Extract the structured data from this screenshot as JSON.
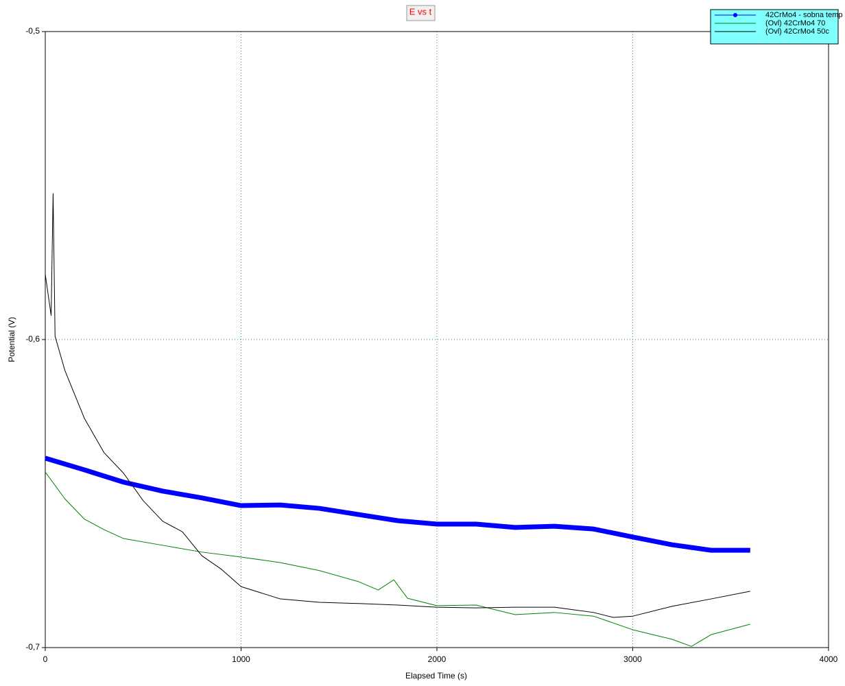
{
  "chart_data": {
    "type": "line",
    "title": "E vs t",
    "xlabel": "Elapsed Time (s)",
    "ylabel": "Potential (V)",
    "xlim": [
      0,
      4000
    ],
    "ylim": [
      -0.7,
      -0.5
    ],
    "xticks": [
      0,
      1000,
      2000,
      3000,
      4000
    ],
    "yticks": [
      {
        "value": -0.7,
        "label": "-0,7"
      },
      {
        "value": -0.6,
        "label": "-0,6"
      },
      {
        "value": -0.5,
        "label": "-0,5"
      }
    ],
    "grid": true,
    "legend": "upper right",
    "series": [
      {
        "name": "42CrMo4 - sobna temp",
        "color": "#0000ff",
        "x": [
          0,
          200,
          400,
          600,
          800,
          1000,
          1200,
          1400,
          1600,
          1800,
          2000,
          2200,
          2400,
          2600,
          2800,
          3000,
          3200,
          3400,
          3600
        ],
        "values": [
          -0.6385,
          -0.6423,
          -0.6463,
          -0.6492,
          -0.6514,
          -0.6539,
          -0.6537,
          -0.6548,
          -0.6568,
          -0.6588,
          -0.6599,
          -0.6599,
          -0.661,
          -0.6606,
          -0.6615,
          -0.6641,
          -0.6666,
          -0.6684,
          -0.6684
        ]
      },
      {
        "name": "(Ovl) 42CrMo4 70",
        "color": "#008000",
        "x": [
          0,
          100,
          200,
          300,
          400,
          600,
          800,
          1000,
          1200,
          1400,
          1600,
          1700,
          1780,
          1850,
          2000,
          2200,
          2400,
          2600,
          2800,
          3000,
          3200,
          3300,
          3400,
          3600
        ],
        "values": [
          -0.643,
          -0.6517,
          -0.6583,
          -0.6617,
          -0.6646,
          -0.6668,
          -0.669,
          -0.6706,
          -0.6724,
          -0.675,
          -0.6786,
          -0.6813,
          -0.678,
          -0.684,
          -0.6864,
          -0.6862,
          -0.6893,
          -0.6886,
          -0.6898,
          -0.6942,
          -0.6973,
          -0.6996,
          -0.6958,
          -0.6924
        ]
      },
      {
        "name": "(Ovl) 42CrMo4 50c",
        "color": "#000000",
        "x": [
          0,
          30,
          40,
          50,
          100,
          200,
          300,
          400,
          500,
          600,
          700,
          800,
          900,
          1000,
          1200,
          1400,
          1600,
          1800,
          2000,
          2200,
          2400,
          2600,
          2800,
          2900,
          3000,
          3200,
          3400,
          3600
        ],
        "values": [
          -0.5788,
          -0.5922,
          -0.5526,
          -0.5989,
          -0.61,
          -0.6256,
          -0.6367,
          -0.6434,
          -0.6523,
          -0.659,
          -0.6624,
          -0.6702,
          -0.6746,
          -0.6802,
          -0.6842,
          -0.6853,
          -0.6857,
          -0.6862,
          -0.6869,
          -0.6871,
          -0.6869,
          -0.6869,
          -0.6886,
          -0.6902,
          -0.6898,
          -0.6866,
          -0.6842,
          -0.6817
        ]
      }
    ]
  }
}
